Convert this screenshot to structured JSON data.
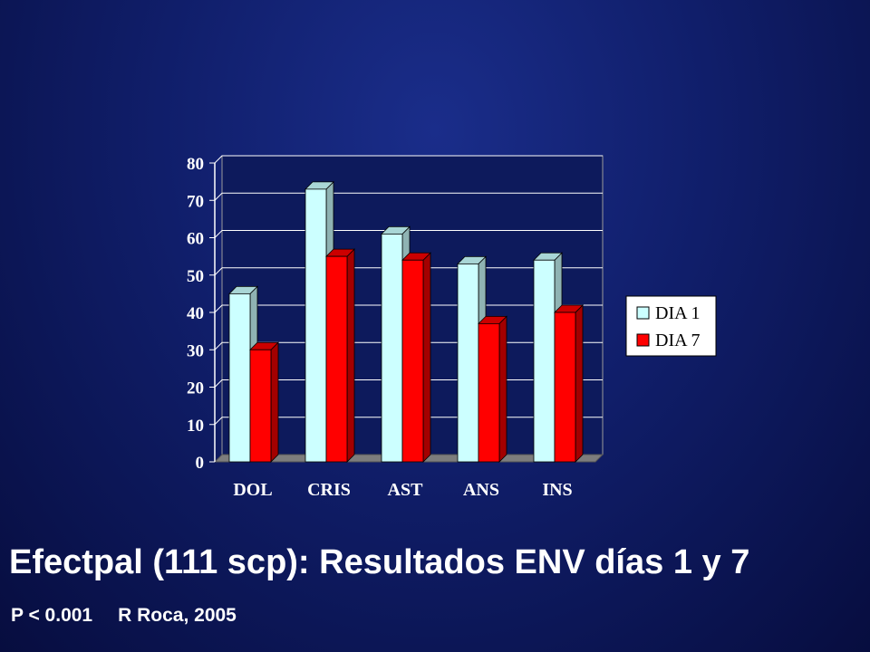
{
  "slide": {
    "title": "Efectpal (111 scp): Resultados ENV días 1 y 7",
    "stat": "P < 0.001",
    "citation": "R Roca, 2005"
  },
  "colors": {
    "background": "#0d1a5c",
    "plot_area": "#0d1a5c",
    "dia1": "#ccffff",
    "dia7": "#ff0000",
    "gridline": "#ffffff"
  },
  "chart_data": {
    "type": "bar",
    "style": "3d-clustered",
    "categories": [
      "DOL",
      "CRIS",
      "AST",
      "ANS",
      "INS"
    ],
    "series": [
      {
        "name": "DIA 1",
        "values": [
          45,
          73,
          61,
          53,
          54
        ]
      },
      {
        "name": "DIA 7",
        "values": [
          30,
          55,
          54,
          37,
          40
        ]
      }
    ],
    "yticks": [
      "0",
      "10",
      "20",
      "30",
      "40",
      "50",
      "60",
      "70",
      "80"
    ],
    "ylim": [
      0,
      80
    ],
    "grid": true,
    "legend_position": "right"
  }
}
